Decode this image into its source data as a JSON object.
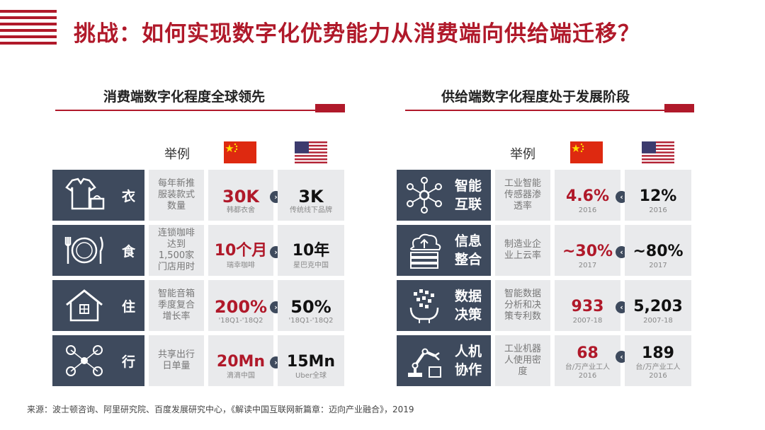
{
  "title": "挑战：如何实现数字化优势能力从消费端向供给端迁移？",
  "left": {
    "heading": "消费端数字化程度全球领先",
    "example_header": "举例",
    "rows": [
      {
        "category": "衣",
        "icon": "clothing-icon",
        "example": "每年新推服装款式数量",
        "cn_value": "30K",
        "cn_sub": "韩都衣舍",
        "us_value": "3K",
        "us_sub": "传统线下品牌"
      },
      {
        "category": "食",
        "icon": "dining-icon",
        "example": "连锁咖啡达到1,500家门店用时",
        "cn_value": "10个月",
        "cn_sub": "瑞幸咖啡",
        "us_value": "10年",
        "us_sub": "星巴克中国"
      },
      {
        "category": "住",
        "icon": "home-icon",
        "example": "智能音箱季度复合增长率",
        "cn_value": "200%",
        "cn_sub": "'18Q1-'18Q2",
        "us_value": "50%",
        "us_sub": "'18Q1-'18Q2"
      },
      {
        "category": "行",
        "icon": "mobility-icon",
        "example": "共享出行日单量",
        "cn_value": "20Mn",
        "cn_sub": "滴滴中国",
        "us_value": "15Mn",
        "us_sub": "Uber全球"
      }
    ]
  },
  "right": {
    "heading": "供给端数字化程度处于发展阶段",
    "example_header": "举例",
    "rows": [
      {
        "category_line1": "智能",
        "category_line2": "互联",
        "icon": "network-icon",
        "example": "工业智能传感器渗透率",
        "cn_value": "4.6%",
        "cn_sub": "2016",
        "us_value": "12%",
        "us_sub": "2016"
      },
      {
        "category_line1": "信息",
        "category_line2": "整合",
        "icon": "cloud-server-icon",
        "example": "制造业企业上云率",
        "cn_value": "~30%",
        "cn_sub": "2017",
        "us_value": "~80%",
        "us_sub": "2017"
      },
      {
        "category_line1": "数据",
        "category_line2": "决策",
        "icon": "data-head-icon",
        "example": "智能数据分析和决策专利数",
        "cn_value": "933",
        "cn_sub": "2007-18",
        "us_value": "5,203",
        "us_sub": "2007-18"
      },
      {
        "category_line1": "人机",
        "category_line2": "协作",
        "icon": "robot-arm-icon",
        "example": "工业机器人使用密度",
        "cn_value": "68",
        "cn_sub": "台/万产业工人 2016",
        "us_value": "189",
        "us_sub": "台/万产业工人 2016"
      }
    ]
  },
  "source": "来源：波士顿咨询、阿里研究院、百度发展研究中心，《解读中国互联网新篇章：迈向产业融合》，2019",
  "colors": {
    "accent": "#b0192a",
    "tile": "#3e4a5d",
    "cell": "#e9eaec"
  }
}
